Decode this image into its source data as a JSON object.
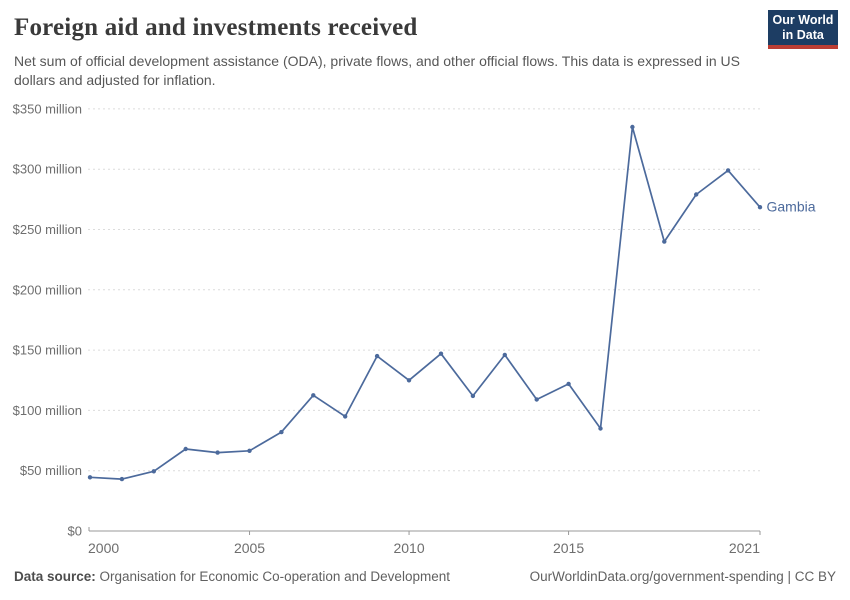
{
  "header": {
    "title": "Foreign aid and investments received",
    "subtitle": "Net sum of official development assistance (ODA), private flows, and other official flows. This data is expressed in US dollars and adjusted for inflation.",
    "logo": {
      "line1": "Our World",
      "line2": "in Data",
      "bg_color": "#1d3d63",
      "accent_color": "#bc3e34"
    }
  },
  "chart_data": {
    "type": "line",
    "title": "Foreign aid and investments received",
    "subtitle": "Net sum of official development assistance (ODA), private flows, and other official flows. This data is expressed in US dollars and adjusted for inflation.",
    "x": [
      2000,
      2001,
      2002,
      2003,
      2004,
      2005,
      2006,
      2007,
      2008,
      2009,
      2010,
      2011,
      2012,
      2013,
      2014,
      2015,
      2016,
      2017,
      2018,
      2019,
      2020,
      2021
    ],
    "series": [
      {
        "name": "Gambia",
        "color": "#4c6a9c",
        "values": [
          44.5,
          43,
          49.5,
          68,
          65,
          66.5,
          82,
          112.5,
          95,
          145,
          125,
          147,
          112,
          146,
          109,
          122,
          85,
          335,
          240,
          279,
          299,
          268.5
        ]
      }
    ],
    "unit": "US$ million",
    "xlabel": "",
    "ylabel": "",
    "xlim": [
      2000,
      2021
    ],
    "ylim": [
      0,
      350
    ],
    "yticks": [
      0,
      50,
      100,
      150,
      200,
      250,
      300,
      350
    ],
    "ytick_labels": [
      "$0",
      "$50 million",
      "$100 million",
      "$150 million",
      "$200 million",
      "$250 million",
      "$300 million",
      "$350 million"
    ],
    "xticks": [
      2000,
      2005,
      2010,
      2015,
      2021
    ],
    "xtick_labels": [
      "2000",
      "2005",
      "2010",
      "2015",
      "2021"
    ],
    "grid": "horizontal-dashed",
    "grid_color": "#dcdcdc",
    "axis_color": "#999999",
    "tick_label_color": "#6e6e6e",
    "legend_position": "end-of-line",
    "end_label": "Gambia"
  },
  "footer": {
    "datasource_label": "Data source:",
    "datasource_value": " Organisation for Economic Co-operation and Development",
    "link": "OurWorldinData.org/government-spending | CC BY"
  }
}
